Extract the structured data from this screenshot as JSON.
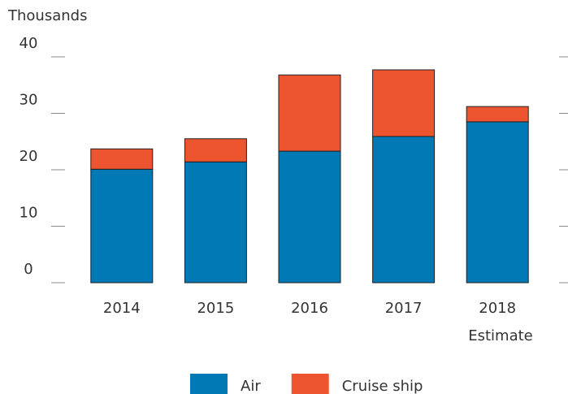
{
  "chart_data": {
    "type": "bar",
    "stacked": true,
    "y_label": "Thousands",
    "annotation": "Estimate",
    "categories": [
      "2014",
      "2015",
      "2016",
      "2017",
      "2018"
    ],
    "series": [
      {
        "name": "Air",
        "color": "#0079b4",
        "values": [
          20.1,
          21.4,
          23.3,
          25.9,
          28.5
        ]
      },
      {
        "name": "Cruise ship",
        "color": "#ec5530",
        "values": [
          3.6,
          4.1,
          13.5,
          11.8,
          2.7
        ]
      }
    ],
    "ylim": [
      0,
      40
    ],
    "yticks": [
      0,
      10,
      20,
      30,
      40
    ]
  }
}
